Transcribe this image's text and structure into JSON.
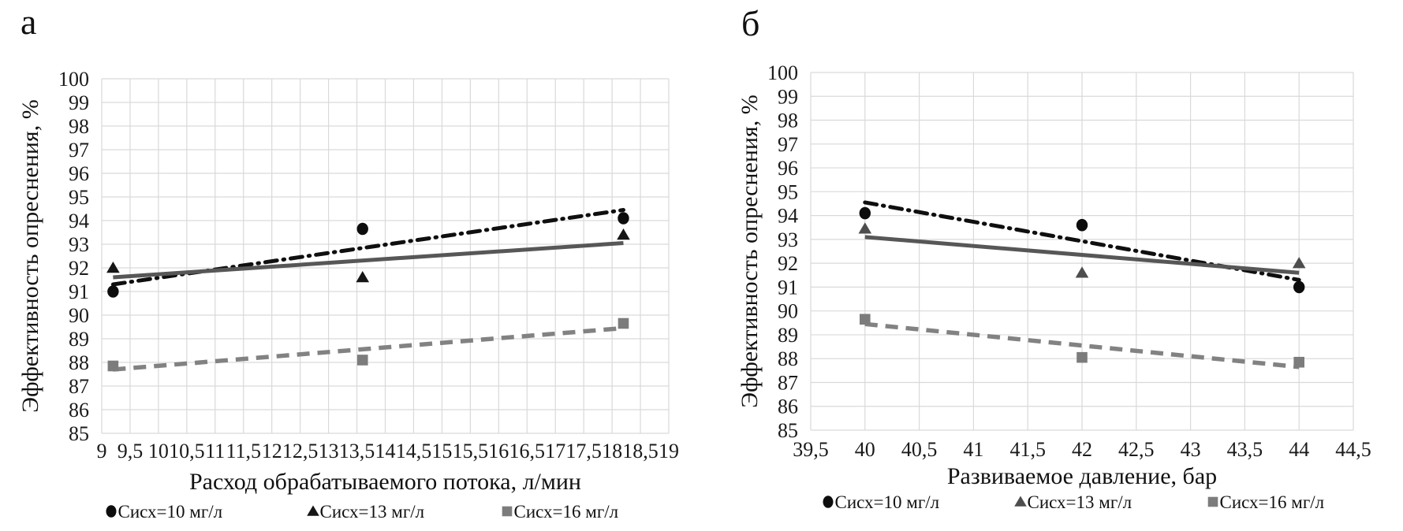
{
  "figure": {
    "background": "#ffffff",
    "panels": [
      {
        "label": "а"
      },
      {
        "label": "б"
      }
    ]
  },
  "chart_data": [
    {
      "id": "a",
      "type": "scatter",
      "title": "",
      "xlabel": "Расход обрабатываемого потока, л/мин",
      "ylabel": "Эффективность опреснения, %",
      "xlim": [
        9,
        19
      ],
      "ylim": [
        85,
        100
      ],
      "xtick_step": 0.5,
      "ytick_step": 1,
      "grid": true,
      "grid_color": "#d9d9d9",
      "legend_position": "bottom",
      "xticks": [
        "9",
        "9,5",
        "10",
        "10,5",
        "11",
        "11,5",
        "12",
        "12,5",
        "13",
        "13,5",
        "14",
        "14,5",
        "15",
        "15,5",
        "16",
        "16,5",
        "17",
        "17,5",
        "18",
        "18,5",
        "19"
      ],
      "yticks": [
        "85",
        "86",
        "87",
        "88",
        "89",
        "90",
        "91",
        "92",
        "93",
        "94",
        "95",
        "96",
        "97",
        "98",
        "99",
        "100"
      ],
      "series": [
        {
          "name": "Сисх=10 мг/л",
          "marker": "circle",
          "marker_color": "#0d0d0d",
          "points": [
            [
              9.2,
              91.0
            ],
            [
              13.6,
              93.65
            ],
            [
              18.2,
              94.1
            ]
          ],
          "trendline": {
            "style": "dashdot",
            "color": "#0f0f0f",
            "from": [
              9.2,
              91.3
            ],
            "to": [
              18.2,
              94.45
            ]
          }
        },
        {
          "name": "Сисх=13 мг/л",
          "marker": "triangle",
          "marker_color": "#161616",
          "points": [
            [
              9.2,
              92.0
            ],
            [
              13.6,
              91.6
            ],
            [
              18.2,
              93.4
            ]
          ],
          "trendline": {
            "style": "solid",
            "color": "#575757",
            "from": [
              9.2,
              91.6
            ],
            "to": [
              18.2,
              93.05
            ]
          }
        },
        {
          "name": "Сисх=16 мг/л",
          "marker": "square",
          "marker_color": "#7c7c7c",
          "points": [
            [
              9.2,
              87.85
            ],
            [
              13.6,
              88.1
            ],
            [
              18.2,
              89.65
            ]
          ],
          "trendline": {
            "style": "dashed",
            "color": "#828282",
            "from": [
              9.2,
              87.7
            ],
            "to": [
              18.2,
              89.45
            ]
          }
        }
      ]
    },
    {
      "id": "b",
      "type": "scatter",
      "title": "",
      "xlabel": "Развиваемое давление, бар",
      "ylabel": "Эффективность опреснения, %",
      "xlim": [
        39.5,
        44.5
      ],
      "ylim": [
        85,
        100
      ],
      "xtick_step": 0.5,
      "ytick_step": 1,
      "grid": true,
      "grid_color": "#d9d9d9",
      "legend_position": "bottom",
      "xticks": [
        "39,5",
        "40",
        "40,5",
        "41",
        "41,5",
        "42",
        "42,5",
        "43",
        "43,5",
        "44",
        "44,5"
      ],
      "yticks": [
        "85",
        "86",
        "87",
        "88",
        "89",
        "90",
        "91",
        "92",
        "93",
        "94",
        "95",
        "96",
        "97",
        "98",
        "99",
        "100"
      ],
      "series": [
        {
          "name": "Сисх=10 мг/л",
          "marker": "circle",
          "marker_color": "#0d0d0d",
          "points": [
            [
              40,
              94.1
            ],
            [
              42,
              93.6
            ],
            [
              44,
              91.0
            ]
          ],
          "trendline": {
            "style": "dashdot",
            "color": "#0f0f0f",
            "from": [
              40,
              94.55
            ],
            "to": [
              44,
              91.3
            ]
          }
        },
        {
          "name": "Сисх=13 мг/л",
          "marker": "triangle",
          "marker_color": "#4d4d4d",
          "points": [
            [
              40,
              93.45
            ],
            [
              42,
              91.6
            ],
            [
              44,
              92.0
            ]
          ],
          "trendline": {
            "style": "solid",
            "color": "#575757",
            "from": [
              40,
              93.1
            ],
            "to": [
              44,
              91.6
            ]
          }
        },
        {
          "name": "Сисх=16 мг/л",
          "marker": "square",
          "marker_color": "#7c7c7c",
          "points": [
            [
              40,
              89.65
            ],
            [
              42,
              88.05
            ],
            [
              44,
              87.85
            ]
          ],
          "trendline": {
            "style": "dashed",
            "color": "#828282",
            "from": [
              40,
              89.45
            ],
            "to": [
              44,
              87.65
            ]
          }
        }
      ]
    }
  ]
}
